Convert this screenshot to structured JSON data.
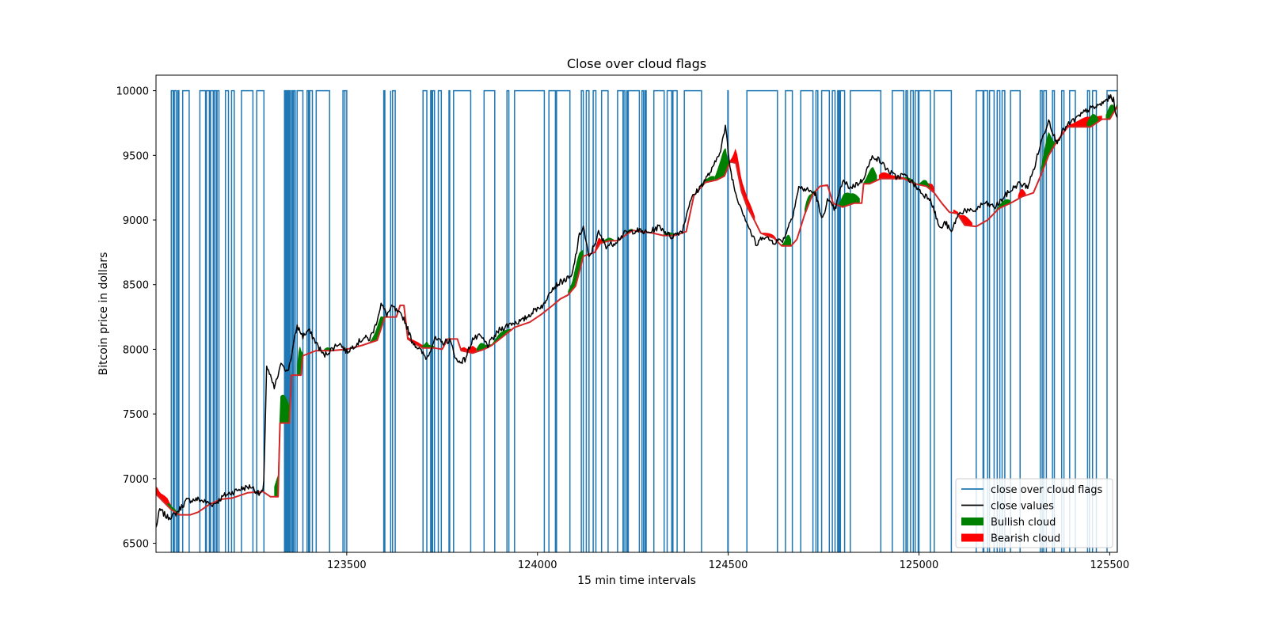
{
  "chart_data": {
    "type": "line",
    "title": "Close over cloud flags",
    "xlabel": "15 min time intervals",
    "ylabel": "Bitcoin price in dollars",
    "xlim": [
      123000,
      125520
    ],
    "ylim": [
      6430,
      10120
    ],
    "xticks": [
      123500,
      124000,
      124500,
      125000,
      125500
    ],
    "yticks": [
      6500,
      7000,
      7500,
      8000,
      8500,
      9000,
      9500,
      10000
    ],
    "xtick_labels": [
      "123500",
      "124000",
      "124500",
      "125000",
      "125500"
    ],
    "ytick_labels": [
      "6500",
      "7000",
      "7500",
      "8000",
      "8500",
      "9000",
      "9500",
      "10000"
    ],
    "legend_position": "lower-right",
    "legend": [
      {
        "label": "close over cloud flags",
        "kind": "line",
        "color": "#1f77b4"
      },
      {
        "label": "close values",
        "kind": "line",
        "color": "#000000"
      },
      {
        "label": "Bullish cloud",
        "kind": "patch",
        "color": "#008000"
      },
      {
        "label": "Bearish cloud",
        "kind": "patch",
        "color": "#ff0000"
      }
    ],
    "series": [
      {
        "id": "close_values",
        "color": "#000000",
        "points": [
          [
            123000,
            6620
          ],
          [
            123010,
            6760
          ],
          [
            123030,
            6700
          ],
          [
            123050,
            6720
          ],
          [
            123080,
            6830
          ],
          [
            123110,
            6840
          ],
          [
            123150,
            6800
          ],
          [
            123180,
            6870
          ],
          [
            123220,
            6920
          ],
          [
            123250,
            6940
          ],
          [
            123270,
            6880
          ],
          [
            123282,
            6900
          ],
          [
            123290,
            7870
          ],
          [
            123310,
            7700
          ],
          [
            123330,
            7900
          ],
          [
            123345,
            7820
          ],
          [
            123355,
            7950
          ],
          [
            123370,
            8180
          ],
          [
            123385,
            8100
          ],
          [
            123400,
            8150
          ],
          [
            123420,
            8050
          ],
          [
            123440,
            7950
          ],
          [
            123460,
            8000
          ],
          [
            123480,
            8050
          ],
          [
            123500,
            7980
          ],
          [
            123520,
            8030
          ],
          [
            123545,
            8090
          ],
          [
            123560,
            8080
          ],
          [
            123575,
            8180
          ],
          [
            123590,
            8350
          ],
          [
            123605,
            8270
          ],
          [
            123620,
            8330
          ],
          [
            123635,
            8280
          ],
          [
            123650,
            8240
          ],
          [
            123670,
            8070
          ],
          [
            123690,
            8000
          ],
          [
            123710,
            7930
          ],
          [
            123730,
            8080
          ],
          [
            123750,
            8050
          ],
          [
            123770,
            8070
          ],
          [
            123790,
            7900
          ],
          [
            123810,
            7920
          ],
          [
            123830,
            8080
          ],
          [
            123850,
            8100
          ],
          [
            123870,
            8030
          ],
          [
            123900,
            8150
          ],
          [
            123930,
            8200
          ],
          [
            123960,
            8220
          ],
          [
            124000,
            8320
          ],
          [
            124020,
            8350
          ],
          [
            124030,
            8450
          ],
          [
            124060,
            8520
          ],
          [
            124090,
            8560
          ],
          [
            124110,
            8880
          ],
          [
            124120,
            8950
          ],
          [
            124135,
            8700
          ],
          [
            124160,
            8900
          ],
          [
            124180,
            8800
          ],
          [
            124200,
            8820
          ],
          [
            124230,
            8900
          ],
          [
            124260,
            8920
          ],
          [
            124290,
            8900
          ],
          [
            124320,
            8950
          ],
          [
            124350,
            8870
          ],
          [
            124380,
            8920
          ],
          [
            124400,
            9150
          ],
          [
            124430,
            9270
          ],
          [
            124460,
            9400
          ],
          [
            124480,
            9550
          ],
          [
            124493,
            9720
          ],
          [
            124505,
            9400
          ],
          [
            124520,
            9200
          ],
          [
            124540,
            9050
          ],
          [
            124560,
            8900
          ],
          [
            124575,
            8800
          ],
          [
            124590,
            8880
          ],
          [
            124600,
            8860
          ],
          [
            124620,
            8830
          ],
          [
            124645,
            8850
          ],
          [
            124670,
            9050
          ],
          [
            124685,
            9250
          ],
          [
            124710,
            9230
          ],
          [
            124730,
            9200
          ],
          [
            124745,
            9000
          ],
          [
            124760,
            9150
          ],
          [
            124780,
            9080
          ],
          [
            124800,
            9300
          ],
          [
            124820,
            9250
          ],
          [
            124850,
            9300
          ],
          [
            124880,
            9500
          ],
          [
            124900,
            9450
          ],
          [
            124920,
            9380
          ],
          [
            124940,
            9330
          ],
          [
            124960,
            9350
          ],
          [
            124980,
            9300
          ],
          [
            125010,
            9200
          ],
          [
            125030,
            9170
          ],
          [
            125040,
            9070
          ],
          [
            125055,
            8930
          ],
          [
            125070,
            8980
          ],
          [
            125085,
            8900
          ],
          [
            125100,
            9030
          ],
          [
            125120,
            9080
          ],
          [
            125140,
            9060
          ],
          [
            125170,
            9130
          ],
          [
            125200,
            9100
          ],
          [
            125230,
            9200
          ],
          [
            125260,
            9280
          ],
          [
            125285,
            9260
          ],
          [
            125300,
            9380
          ],
          [
            125320,
            9600
          ],
          [
            125340,
            9780
          ],
          [
            125360,
            9600
          ],
          [
            125380,
            9700
          ],
          [
            125400,
            9760
          ],
          [
            125420,
            9800
          ],
          [
            125440,
            9850
          ],
          [
            125460,
            9870
          ],
          [
            125480,
            9900
          ],
          [
            125500,
            9950
          ],
          [
            125510,
            9930
          ],
          [
            125520,
            9770
          ]
        ]
      },
      {
        "id": "cloud_bound",
        "color": "#d62728",
        "points": [
          [
            123000,
            6880
          ],
          [
            123020,
            6820
          ],
          [
            123040,
            6760
          ],
          [
            123060,
            6720
          ],
          [
            123090,
            6720
          ],
          [
            123110,
            6740
          ],
          [
            123140,
            6800
          ],
          [
            123170,
            6840
          ],
          [
            123200,
            6850
          ],
          [
            123240,
            6890
          ],
          [
            123280,
            6900
          ],
          [
            123300,
            6860
          ],
          [
            123320,
            6860
          ],
          [
            123325,
            7430
          ],
          [
            123350,
            7430
          ],
          [
            123355,
            7800
          ],
          [
            123380,
            7800
          ],
          [
            123385,
            7950
          ],
          [
            123420,
            7990
          ],
          [
            123460,
            7990
          ],
          [
            123500,
            8000
          ],
          [
            123540,
            8030
          ],
          [
            123580,
            8070
          ],
          [
            123600,
            8250
          ],
          [
            123630,
            8250
          ],
          [
            123640,
            8340
          ],
          [
            123650,
            8340
          ],
          [
            123660,
            8080
          ],
          [
            123680,
            8040
          ],
          [
            123700,
            8010
          ],
          [
            123730,
            8010
          ],
          [
            123750,
            8000
          ],
          [
            123765,
            8080
          ],
          [
            123790,
            8080
          ],
          [
            123800,
            7990
          ],
          [
            123830,
            7970
          ],
          [
            123860,
            8000
          ],
          [
            123880,
            8030
          ],
          [
            123910,
            8100
          ],
          [
            123940,
            8170
          ],
          [
            123980,
            8210
          ],
          [
            124010,
            8270
          ],
          [
            124040,
            8340
          ],
          [
            124060,
            8390
          ],
          [
            124080,
            8420
          ],
          [
            124100,
            8490
          ],
          [
            124120,
            8720
          ],
          [
            124150,
            8750
          ],
          [
            124165,
            8820
          ],
          [
            124190,
            8840
          ],
          [
            124210,
            8840
          ],
          [
            124230,
            8880
          ],
          [
            124250,
            8920
          ],
          [
            124270,
            8910
          ],
          [
            124300,
            8900
          ],
          [
            124330,
            8880
          ],
          [
            124360,
            8880
          ],
          [
            124390,
            8910
          ],
          [
            124410,
            9190
          ],
          [
            124440,
            9290
          ],
          [
            124470,
            9310
          ],
          [
            124490,
            9340
          ],
          [
            124505,
            9450
          ],
          [
            124520,
            9440
          ],
          [
            124535,
            9220
          ],
          [
            124550,
            9100
          ],
          [
            124570,
            8990
          ],
          [
            124585,
            8900
          ],
          [
            124600,
            8880
          ],
          [
            124620,
            8860
          ],
          [
            124640,
            8800
          ],
          [
            124665,
            8800
          ],
          [
            124680,
            8850
          ],
          [
            124700,
            9040
          ],
          [
            124720,
            9190
          ],
          [
            124740,
            9260
          ],
          [
            124760,
            9270
          ],
          [
            124775,
            9130
          ],
          [
            124800,
            9100
          ],
          [
            124830,
            9130
          ],
          [
            124850,
            9130
          ],
          [
            124855,
            9280
          ],
          [
            124870,
            9280
          ],
          [
            124900,
            9320
          ],
          [
            124930,
            9320
          ],
          [
            124960,
            9320
          ],
          [
            124990,
            9280
          ],
          [
            125020,
            9260
          ],
          [
            125040,
            9210
          ],
          [
            125060,
            9130
          ],
          [
            125080,
            9060
          ],
          [
            125100,
            9050
          ],
          [
            125120,
            8960
          ],
          [
            125150,
            8950
          ],
          [
            125180,
            9000
          ],
          [
            125210,
            9090
          ],
          [
            125240,
            9130
          ],
          [
            125270,
            9180
          ],
          [
            125300,
            9210
          ],
          [
            125320,
            9350
          ],
          [
            125340,
            9500
          ],
          [
            125360,
            9600
          ],
          [
            125390,
            9720
          ],
          [
            125420,
            9720
          ],
          [
            125450,
            9720
          ],
          [
            125480,
            9780
          ],
          [
            125500,
            9780
          ],
          [
            125520,
            9880
          ]
        ]
      }
    ],
    "bullish_cloud_ranges": [
      [
        123030,
        123060
      ],
      [
        123310,
        123355
      ],
      [
        123370,
        123385
      ],
      [
        123440,
        123460
      ],
      [
        123560,
        123600
      ],
      [
        123695,
        123730
      ],
      [
        123840,
        123880
      ],
      [
        123880,
        123930
      ],
      [
        124080,
        124120
      ],
      [
        124170,
        124200
      ],
      [
        124230,
        124250
      ],
      [
        124330,
        124360
      ],
      [
        124420,
        124465
      ],
      [
        124465,
        124505
      ],
      [
        124640,
        124665
      ],
      [
        124700,
        124730
      ],
      [
        124790,
        124845
      ],
      [
        124855,
        124890
      ],
      [
        124960,
        124990
      ],
      [
        125000,
        125030
      ],
      [
        125200,
        125240
      ],
      [
        125320,
        125360
      ],
      [
        125440,
        125470
      ],
      [
        125490,
        125520
      ]
    ],
    "bearish_cloud_ranges": [
      [
        123000,
        123060
      ],
      [
        123660,
        123710
      ],
      [
        123800,
        123840
      ],
      [
        124150,
        124175
      ],
      [
        124505,
        124570
      ],
      [
        124590,
        124630
      ],
      [
        124800,
        124830
      ],
      [
        124895,
        124960
      ],
      [
        125020,
        125040
      ],
      [
        125090,
        125140
      ],
      [
        125260,
        125280
      ],
      [
        125370,
        125480
      ]
    ],
    "flag_values": [
      0,
      1
    ],
    "flag_transitions": [
      123040,
      123045,
      123048,
      123053,
      123057,
      123060,
      123070,
      123087,
      123115,
      123130,
      123132,
      123140,
      123143,
      123150,
      123153,
      123158,
      123160,
      123165,
      123182,
      123190,
      123198,
      123205,
      123224,
      123254,
      123264,
      123283,
      123337,
      123338,
      123340,
      123341,
      123343,
      123344,
      123346,
      123347,
      123349,
      123350,
      123351,
      123352,
      123356,
      123359,
      123361,
      123365,
      123370,
      123385,
      123396,
      123400,
      123403,
      123410,
      123420,
      123455,
      123490,
      123495,
      123495,
      123500,
      123597,
      123600,
      123615,
      123615,
      123620,
      123627,
      123700,
      123710,
      123720,
      123722,
      123725,
      123730,
      123740,
      123748,
      123768,
      123770,
      123780,
      123825,
      123860,
      123888,
      123920,
      123925,
      123940,
      124018,
      124030,
      124047,
      124050,
      124085,
      124115,
      124120,
      124128,
      124135,
      124146,
      124153,
      124168,
      124185,
      124210,
      124224,
      124225,
      124229,
      124234,
      124237,
      124238,
      124267,
      124274,
      124278,
      124282,
      124285,
      124305,
      124332,
      124340,
      124352,
      124355,
      124366,
      124385,
      124430,
      124499,
      124500,
      124549,
      124629,
      124650,
      124668,
      124690,
      124722,
      124730,
      124735,
      124745,
      124765,
      124773,
      124780,
      124787,
      124790,
      124791,
      124792,
      124794,
      124805,
      124820,
      124900,
      124930,
      124960,
      124966,
      124970,
      124978,
      124985,
      124990,
      124998,
      125000,
      125030,
      125040,
      125085,
      125150,
      125168,
      125170,
      125180,
      125185,
      125197,
      125205,
      125212,
      125218,
      125225,
      125240,
      125265,
      125318,
      125323,
      125327,
      125334,
      125350,
      125355,
      125374,
      125380,
      125395,
      125410,
      125442,
      125447,
      125455,
      125465,
      125493,
      125520
    ]
  }
}
